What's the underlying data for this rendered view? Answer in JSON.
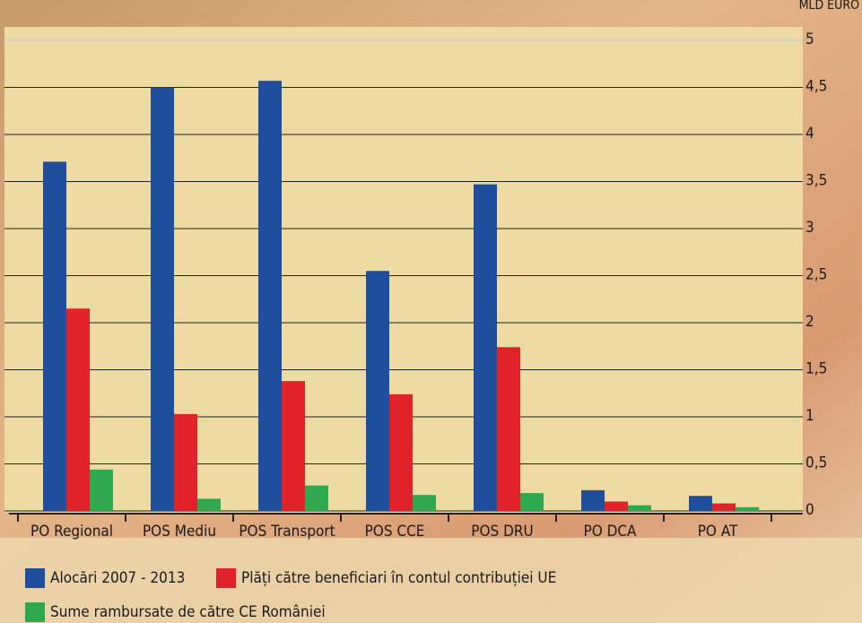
{
  "chart_data": {
    "type": "bar",
    "y_label": "MLD EURO",
    "categories": [
      "PO Regional",
      "POS Mediu",
      "POS Transport",
      "POS CCE",
      "POS DRU",
      "PO DCA",
      "PO AT"
    ],
    "series": [
      {
        "name": "Alocări 2007 - 2013",
        "color": "#1f4e9c",
        "values": [
          3.71,
          4.5,
          4.57,
          2.55,
          3.47,
          0.22,
          0.16
        ]
      },
      {
        "name": "Plăți către beneficiari în contul contribuției UE",
        "color": "#e0222a",
        "values": [
          2.15,
          1.03,
          1.38,
          1.24,
          1.74,
          0.1,
          0.08
        ]
      },
      {
        "name": "Sume rambursate de către CE României",
        "color": "#2fa84f",
        "values": [
          0.44,
          0.13,
          0.27,
          0.17,
          0.19,
          0.06,
          0.04
        ]
      }
    ],
    "ylim": [
      0,
      5
    ],
    "yticks": [
      0,
      {
        "value": 0.5,
        "label": "0,5"
      },
      1,
      {
        "value": 1.5,
        "label": "1,5"
      },
      2,
      {
        "value": 2.5,
        "label": "2,5"
      },
      3,
      {
        "value": 3.5,
        "label": "3,5"
      },
      4,
      {
        "value": 4.5,
        "label": "4,5"
      },
      5
    ],
    "grid": true
  }
}
